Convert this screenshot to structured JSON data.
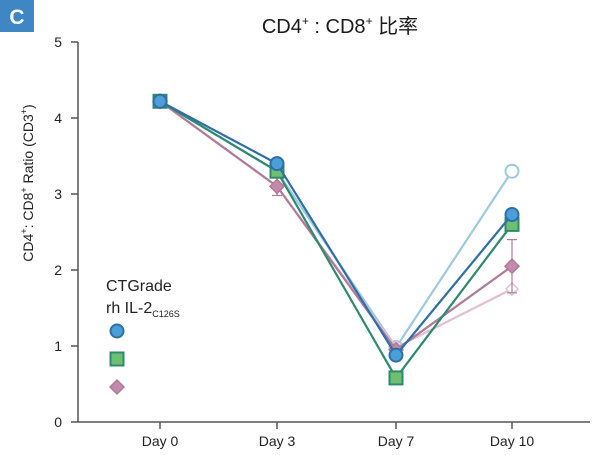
{
  "panel_label": "C",
  "colors": {
    "badge": "#3f86c5",
    "axis": "#555555",
    "blue": "#2f6fa6",
    "blue_marker": "#4a9fd8",
    "green": "#2e8a6e",
    "green_marker": "#6fbf73",
    "mauve": "#b07a99",
    "mauve_marker": "#c48aab",
    "light_blue": "#9ec9de",
    "light_pink": "#e2bfd2"
  },
  "chart_data": {
    "type": "line",
    "title": {
      "prefix": "CD4",
      "prefix_sup": "+",
      "middle": " : CD8",
      "middle_sup": "+",
      "suffix": " 比率"
    },
    "ylabel": {
      "p1": "CD4",
      "s1": "+",
      "p2": ": CD8",
      "s2": "+",
      "p3": " Ratio (CD3",
      "s3": "+",
      "p4": ")"
    },
    "categories": [
      "Day 0",
      "Day 3",
      "Day 7",
      "Day 10"
    ],
    "ylim": [
      0,
      5
    ],
    "yticks": [
      "0",
      "1",
      "2",
      "3",
      "4",
      "5"
    ],
    "legend": {
      "line1": "CTGrade",
      "line2_main": "rh IL-2",
      "line2_sub": "C126S",
      "placement": "left-center"
    },
    "series": [
      {
        "values": [
          4.22,
          3.3,
          0.98,
          3.3
        ],
        "marker": "circle-open",
        "color": "light_blue"
      },
      {
        "values": [
          4.22,
          3.1,
          0.98,
          1.75
        ],
        "marker": "diamond-open",
        "color": "light_pink"
      },
      {
        "values": [
          4.22,
          3.1,
          0.95,
          2.05
        ],
        "marker": "diamond",
        "color": "mauve",
        "errors": [
          0,
          0.12,
          0,
          0.35
        ]
      },
      {
        "values": [
          4.22,
          3.3,
          0.58,
          2.6
        ],
        "marker": "square",
        "color": "green"
      },
      {
        "values": [
          4.22,
          3.4,
          0.88,
          2.73
        ],
        "marker": "circle",
        "color": "blue"
      }
    ]
  }
}
